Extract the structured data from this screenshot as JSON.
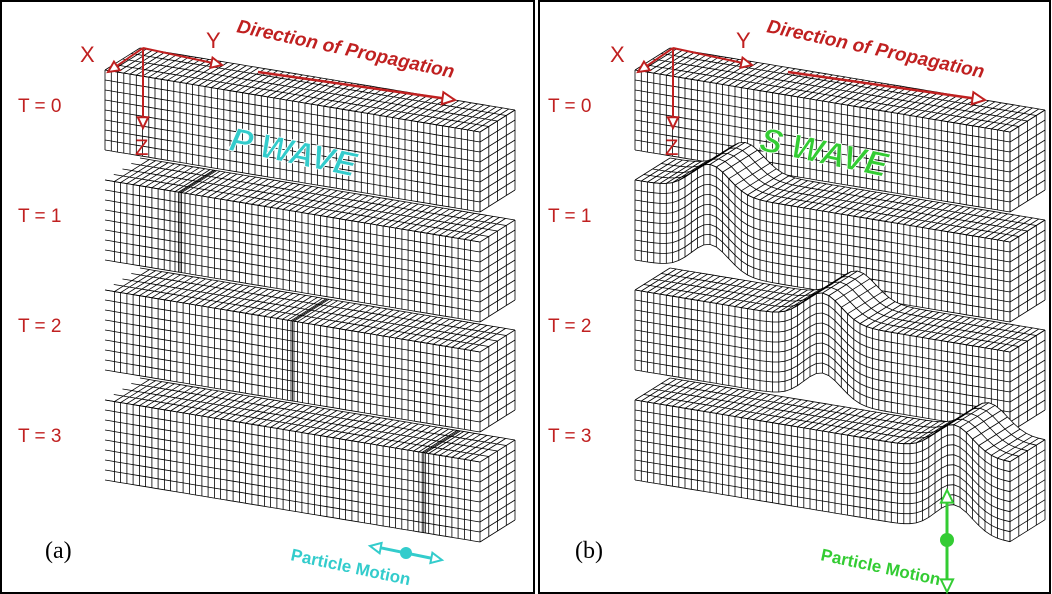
{
  "panels": [
    {
      "label": "(a)",
      "axes": {
        "x": "X",
        "y": "Y",
        "z": "Z"
      },
      "direction": "Direction of Propagation",
      "wave": "P WAVE",
      "times": [
        "T = 0",
        "T = 1",
        "T = 2",
        "T = 3"
      ],
      "motion": "Particle Motion"
    },
    {
      "label": "(b)",
      "axes": {
        "x": "X",
        "y": "Y",
        "z": "Z"
      },
      "direction": "Direction of Propagation",
      "wave": "S WAVE",
      "times": [
        "T = 0",
        "T = 1",
        "T = 2",
        "T = 3"
      ],
      "motion": "Particle Motion"
    }
  ]
}
